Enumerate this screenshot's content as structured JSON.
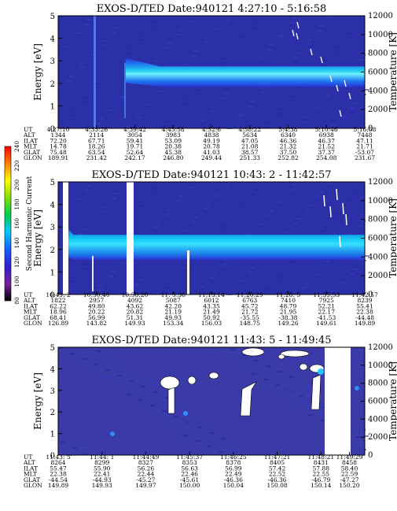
{
  "chart_data": [
    {
      "type": "heatmap",
      "title": "EXOS-D/TED   Date:940121   4:27:10 - 5:16:58",
      "ylabel": "Energy [eV]",
      "ylabel_right": "Temperature [K]",
      "ylim": [
        0,
        5
      ],
      "yticks": [
        "0",
        "1",
        "2",
        "3",
        "4",
        "5"
      ],
      "ylim_right": [
        0,
        12000
      ],
      "yticks_right": [
        "0",
        "2000",
        "4000",
        "6000",
        "8000",
        "10000",
        "12000"
      ],
      "band": {
        "start_frac": 0.22,
        "ramp_end_frac": 0.33,
        "center_eV": 2.3,
        "width_eV": 0.45
      },
      "ephemeris": {
        "rows": [
          "UT",
          "ALT",
          "ILAT",
          "MLT",
          "GLAT",
          "GLON"
        ],
        "columns": [
          [
            "4:27:10",
            "1344",
            "72.20",
            "14.78",
            "75.48",
            "189.91"
          ],
          [
            "4:33:26",
            "2114",
            "67.71",
            "18.26",
            "63.54",
            "231.42"
          ],
          [
            "4:39:42",
            "3054",
            "59.41",
            "19.71",
            "52.64",
            "242.17"
          ],
          [
            "4:45:58",
            "3983",
            "53.09",
            "20.38",
            "45.38",
            "246.80"
          ],
          [
            "4:52:6",
            "4838",
            "49.19",
            "20.78",
            "41.03",
            "249.44"
          ],
          [
            "4:58:22",
            "5634",
            "47.05",
            "21.08",
            "38.57",
            "251.33"
          ],
          [
            "5:4:38",
            "6340",
            "46.36",
            "21.32",
            "37.50",
            "252.82"
          ],
          [
            "5:10:46",
            "6938",
            "46.37",
            "21.52",
            "37.37",
            "254.08"
          ],
          [
            "5:16:58",
            "7448",
            "47.11",
            "21.71",
            "-53.07",
            "231.67"
          ]
        ]
      }
    },
    {
      "type": "heatmap",
      "title": "EXOS-D/TED   Date:940121  10:43: 2 - 11:42:57",
      "ylabel": "Energy [eV]",
      "ylabel_right": "Temperature [K]",
      "ylim": [
        0,
        5
      ],
      "yticks": [
        "0",
        "1",
        "2",
        "3",
        "4",
        "5"
      ],
      "ylim_right": [
        0,
        12000
      ],
      "yticks_right": [
        "0",
        "2000",
        "4000",
        "6000",
        "8000",
        "10000",
        "12000"
      ],
      "band": {
        "start_frac": 0.02,
        "ramp_end_frac": 0.05,
        "center_eV": 2.1,
        "width_eV": 0.55
      },
      "ephemeris": {
        "rows": [
          "UT",
          "ALT",
          "ILAT",
          "MLT",
          "GLAT",
          "GLON"
        ],
        "columns": [
          [
            "10:43: 2",
            "1822",
            "62.22",
            "18.96",
            "68.41",
            "126.89"
          ],
          [
            "10:50:40",
            "2957",
            "49.80",
            "20.22",
            "56.99",
            "143.82"
          ],
          [
            "10:58:20",
            "4092",
            "43.62",
            "20.82",
            "51.31",
            "149.93"
          ],
          [
            "11: 5:36",
            "5087",
            "42.20",
            "21.19",
            "49.93",
            "153.34"
          ],
          [
            "11:13:14",
            "6012",
            "43.35",
            "21.49",
            "50.92",
            "156.03"
          ],
          [
            "11:20:29",
            "6763",
            "45.72",
            "21.72",
            "-35.55",
            "148.75"
          ],
          [
            "11:28: 5",
            "7410",
            "48.79",
            "21.95",
            "-38.38",
            "149.26"
          ],
          [
            "11:35:53",
            "7925",
            "52.21",
            "22.17",
            "-41.53",
            "149.61"
          ],
          [
            "11:42:57",
            "8239",
            "55.41",
            "22.38",
            "-44.48",
            "149.89"
          ]
        ]
      }
    },
    {
      "type": "heatmap",
      "title": "EXOS-D/TED   Date:940121  11:43: 5 - 11:49:45",
      "ylabel": "Energy [eV]",
      "ylabel_right": "Temperature [K]",
      "ylim": [
        0,
        5
      ],
      "yticks": [
        "0",
        "1",
        "2",
        "3",
        "4",
        "5"
      ],
      "ylim_right": [
        0,
        12000
      ],
      "yticks_right": [
        "0",
        "2000",
        "4000",
        "6000",
        "8000",
        "10000",
        "12000"
      ],
      "ephemeris": {
        "rows": [
          "UT",
          "ALT",
          "ILAT",
          "MLT",
          "GLAT",
          "GLON"
        ],
        "columns": [
          [
            "11:43: 5",
            "8264",
            "55.47",
            "22.38",
            "-44.54",
            "149.89"
          ],
          [
            "11:44: 1",
            "8299",
            "55.90",
            "22.41",
            "-44.93",
            "149.93"
          ],
          [
            "11:44:49",
            "8327",
            "56.26",
            "22.44",
            "-45.27",
            "149.97"
          ],
          [
            "11:45:37",
            "8353",
            "56.63",
            "22.46",
            "-45.61",
            "150.00"
          ],
          [
            "11:46:25",
            "8378",
            "56.99",
            "22.49",
            "-46.36",
            "150.04"
          ],
          [
            "11:47:21",
            "8405",
            "57.42",
            "22.52",
            "-46.36",
            "150.08"
          ],
          [
            "11:48:21",
            "8431",
            "57.88",
            "22.55",
            "-46.79",
            "150.14"
          ],
          [
            "11:49:29",
            "8458",
            "58.40",
            "22.59",
            "-47.27",
            "150.20"
          ]
        ]
      }
    }
  ],
  "colorbar": {
    "label": "Second Harmonic Current",
    "ticks": [
      "80",
      "100",
      "120",
      "140",
      "160",
      "180",
      "200",
      "220",
      "240"
    ],
    "colors": [
      "#000000",
      "#7a1fa2",
      "#2f1fd0",
      "#1560ff",
      "#00c8ff",
      "#00d050",
      "#80e000",
      "#ffff00",
      "#ff8000",
      "#ff0000"
    ]
  }
}
